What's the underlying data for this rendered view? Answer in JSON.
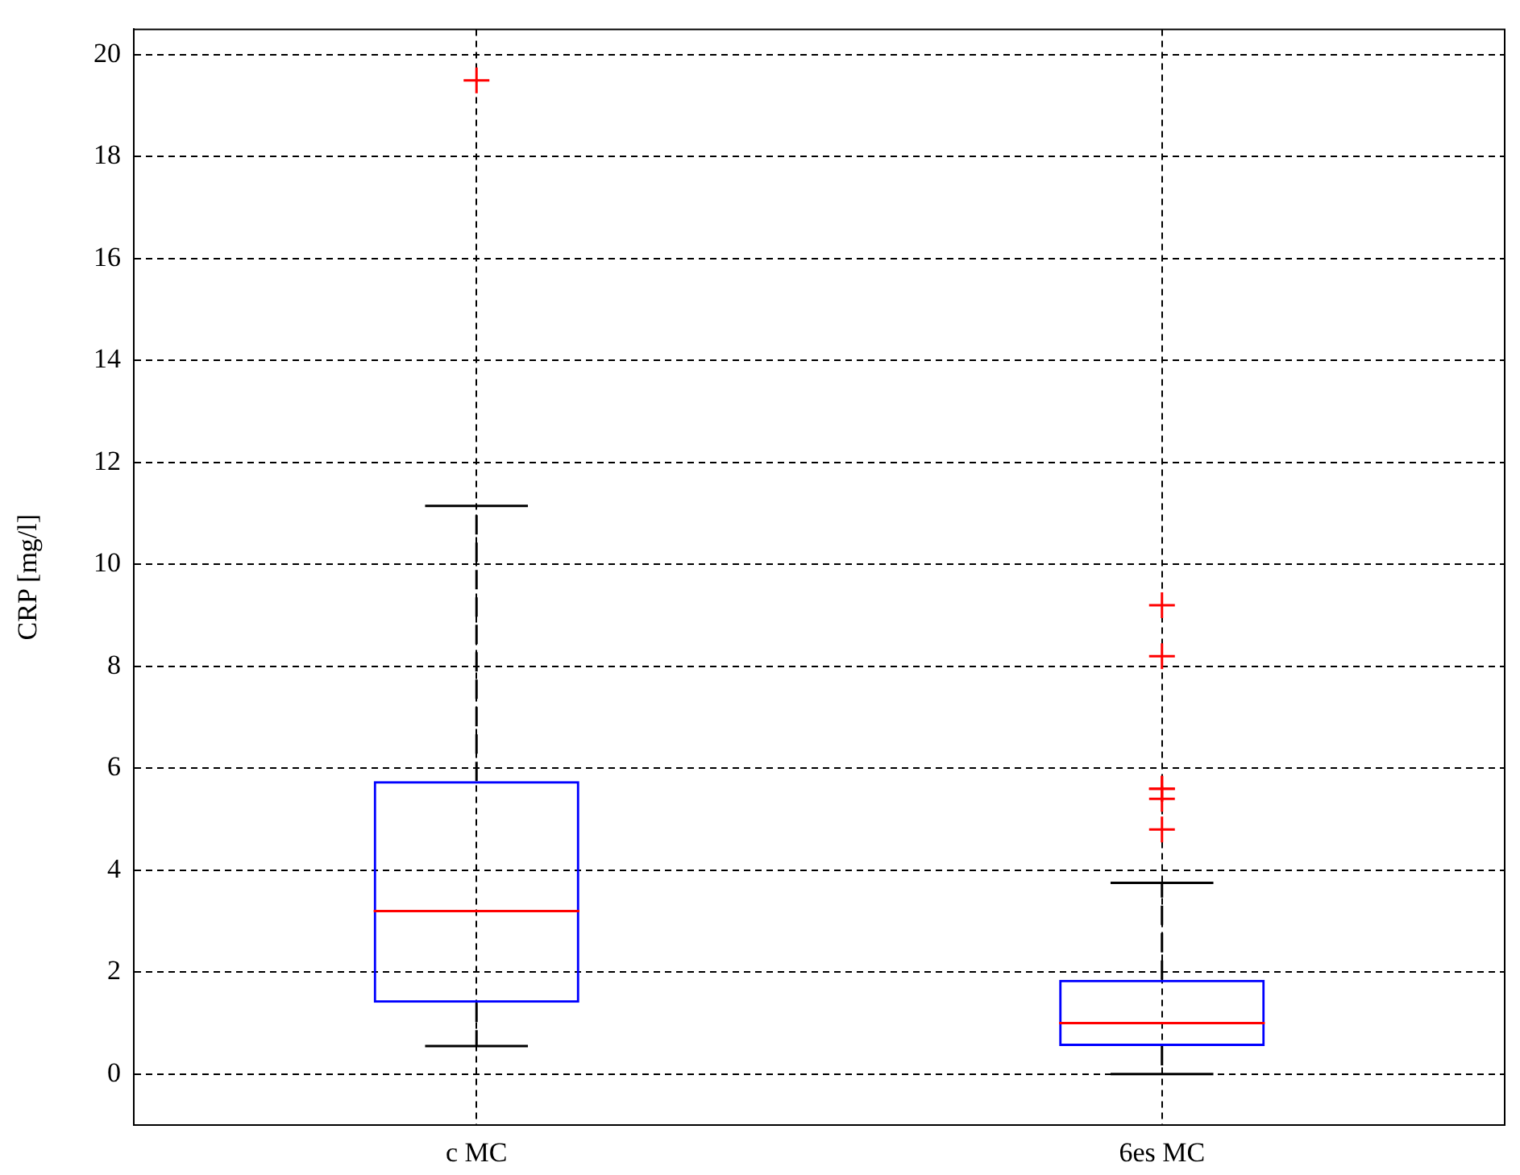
{
  "chart_data": {
    "type": "box",
    "ylabel": "CRP [mg/l]",
    "categories": [
      "c MC",
      "6es MC"
    ],
    "series": [
      {
        "color": "#0000ff",
        "boxes": [
          {
            "low": 0.55,
            "q1": 1.4,
            "median": 3.2,
            "q3": 5.75,
            "high": 11.15,
            "outliers": [
              19.5
            ]
          },
          {
            "low": 0,
            "q1": 0.55,
            "median": 1.0,
            "q3": 1.85,
            "high": 3.75,
            "outliers": [
              9.2,
              8.2,
              5.6,
              5.6,
              5.4,
              4.8
            ]
          }
        ]
      }
    ],
    "ylim": [
      -1,
      20.5
    ],
    "yticks": [
      0,
      2,
      4,
      6,
      8,
      10,
      12,
      14,
      16,
      18,
      20
    ],
    "grid": true,
    "marker": "cross",
    "legend": false
  }
}
